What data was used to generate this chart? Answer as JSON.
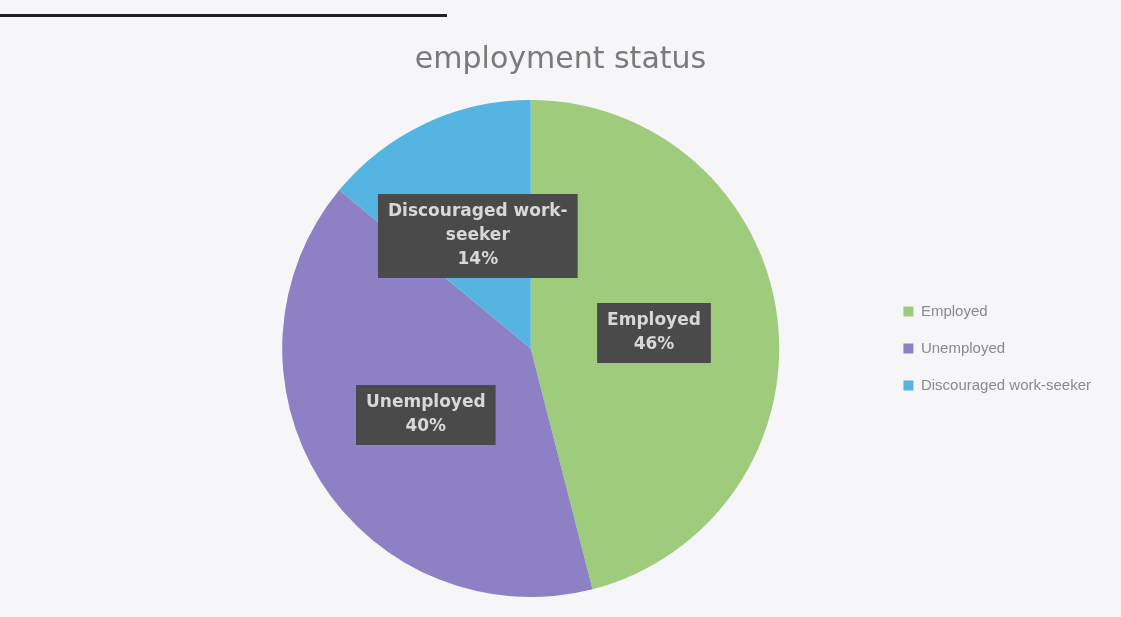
{
  "chart_data": {
    "type": "pie",
    "title": "employment status",
    "categories": [
      "Employed",
      "Unemployed",
      "Discouraged work-seeker"
    ],
    "values": [
      46,
      40,
      14
    ],
    "colors": [
      "#9fcb7c",
      "#8e80c4",
      "#55b4e0"
    ],
    "value_labels": [
      "46%",
      "40%",
      "14%"
    ],
    "legend": "right"
  }
}
